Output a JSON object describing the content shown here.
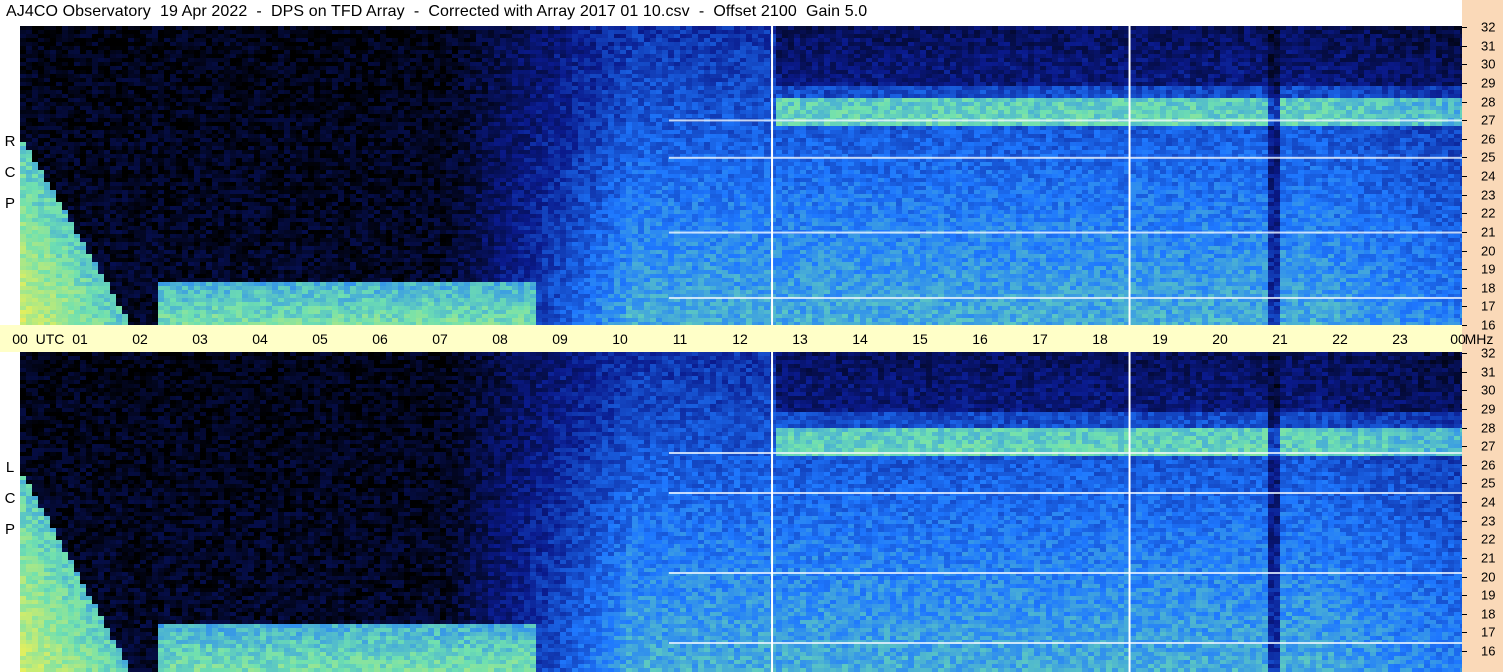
{
  "header": {
    "title": "AJ4CO Observatory  19 Apr 2022  -  DPS on TFD Array  -  Corrected with Array 2017 01 10.csv  -  Offset 2100  Gain 5.0"
  },
  "panels": {
    "top_label": "R\nC\nP",
    "bottom_label": "L\nC\nP"
  },
  "axis": {
    "time_labels": [
      "00",
      "UTC",
      "01",
      "02",
      "03",
      "04",
      "05",
      "06",
      "07",
      "08",
      "09",
      "10",
      "11",
      "12",
      "13",
      "14",
      "15",
      "16",
      "17",
      "18",
      "19",
      "20",
      "21",
      "22",
      "23",
      "00",
      "MHz"
    ],
    "freq_labels": [
      "32",
      "31",
      "30",
      "29",
      "28",
      "27",
      "26",
      "25",
      "24",
      "23",
      "22",
      "21",
      "20",
      "19",
      "18",
      "17",
      "16"
    ]
  },
  "colors": {
    "time_strip": "#ffffc8",
    "freq_strip": "#fad9b8",
    "background": "#000000",
    "low": "#0a1a8c",
    "mid": "#1e78ff",
    "high": "#6fe0b0",
    "peak": "#e8f05a",
    "hot": "#f05aa0"
  },
  "chart_data": {
    "type": "heatmap",
    "title": "AJ4CO Observatory  19 Apr 2022  -  DPS on TFD Array  -  Corrected with Array 2017 01 10.csv  -  Offset 2100  Gain 5.0",
    "x_label": "UTC",
    "x_range": [
      0,
      24
    ],
    "x_ticks": [
      "00",
      "01",
      "02",
      "03",
      "04",
      "05",
      "06",
      "07",
      "08",
      "09",
      "10",
      "11",
      "12",
      "13",
      "14",
      "15",
      "16",
      "17",
      "18",
      "19",
      "20",
      "21",
      "22",
      "23",
      "00"
    ],
    "y_label": "MHz",
    "y_range": [
      16,
      32
    ],
    "y_ticks": [
      32,
      31,
      30,
      29,
      28,
      27,
      26,
      25,
      24,
      23,
      22,
      21,
      20,
      19,
      18,
      17,
      16
    ],
    "panels": [
      "RCP",
      "LCP"
    ],
    "gap_markers_utc": [
      12.5,
      18.45
    ],
    "dark_band_utc": 20.85,
    "rfi_lines_mhz": [
      27,
      25,
      21,
      17.5
    ],
    "colormap": [
      "#000000",
      "#0a1a8c",
      "#1e78ff",
      "#6fe0b0",
      "#e8f05a",
      "#f05aa0"
    ]
  }
}
